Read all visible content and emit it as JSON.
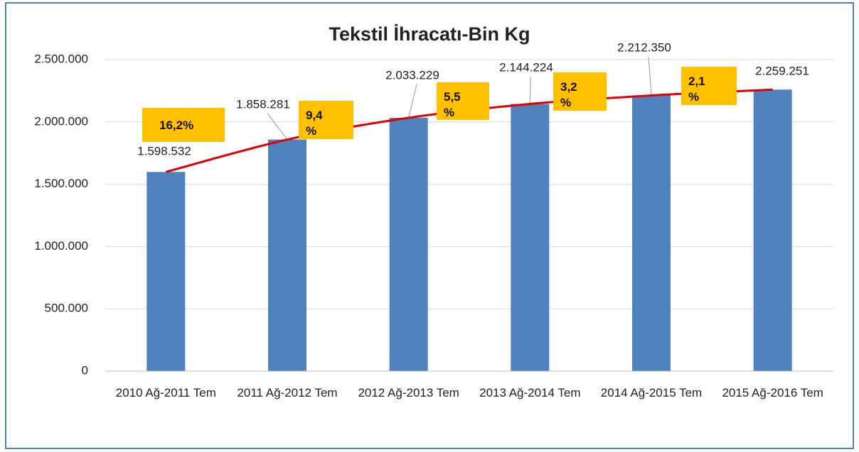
{
  "chart_data": {
    "type": "bar",
    "title": "Tekstil İhracatı-Bin Kg",
    "categories": [
      "2010 Ağ-2011 Tem",
      "2011 Ağ-2012 Tem",
      "2012 Ağ-2013 Tem",
      "2013 Ağ-2014 Tem",
      "2014 Ağ-2015 Tem",
      "2015 Ağ-2016 Tem"
    ],
    "values": [
      1598532,
      1858281,
      2033229,
      2144224,
      2212350,
      2259251
    ],
    "value_labels": [
      "1.598.532",
      "1.858.281",
      "2.033.229",
      "2.144.224",
      "2.212.350",
      "2.259.251"
    ],
    "color": "#4f81bd",
    "trendline_color": "#e00000",
    "annotations": [
      "16,2%",
      "9,4 %",
      "5,5 %",
      "3,2 %",
      "2,1 %"
    ],
    "annotation_color": "#ffc000",
    "ylim": [
      0,
      2500000
    ],
    "yticks": [
      0,
      {
        "value": 500000,
        "label": "500.000"
      },
      {
        "value": 1000000,
        "label": "1.000.000"
      },
      {
        "value": 1500000,
        "label": "1.500.000"
      },
      {
        "value": 2000000,
        "label": "2.000.000"
      },
      {
        "value": 2500000,
        "label": "2.500.000"
      }
    ],
    "grid": true
  }
}
